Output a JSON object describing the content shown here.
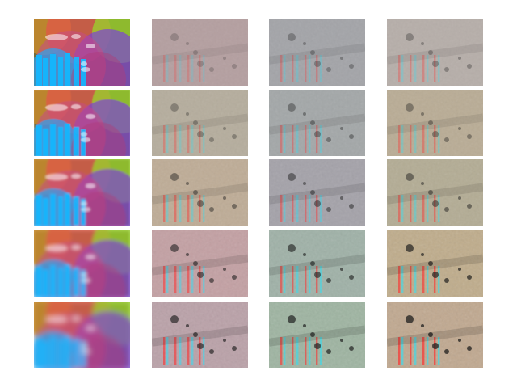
{
  "figure": {
    "rows": 5,
    "columns": 4,
    "tiles": [
      {
        "row": 1,
        "col": 1,
        "kind": "color-map",
        "blur": 0.3
      },
      {
        "row": 1,
        "col": 2,
        "kind": "gray-detail",
        "tint": "#a48a8c",
        "strength": 0.2
      },
      {
        "row": 1,
        "col": 3,
        "kind": "gray-detail",
        "tint": "#8f9195",
        "strength": 0.35
      },
      {
        "row": 1,
        "col": 4,
        "kind": "gray-detail",
        "tint": "#a79d96",
        "strength": 0.35
      },
      {
        "row": 2,
        "col": 1,
        "kind": "color-map",
        "blur": 0.6
      },
      {
        "row": 2,
        "col": 2,
        "kind": "gray-detail",
        "tint": "#a59c88",
        "strength": 0.35
      },
      {
        "row": 2,
        "col": 3,
        "kind": "gray-detail",
        "tint": "#8f9495",
        "strength": 0.45
      },
      {
        "row": 2,
        "col": 4,
        "kind": "gray-detail",
        "tint": "#aa9a7e",
        "strength": 0.45
      },
      {
        "row": 3,
        "col": 1,
        "kind": "color-map",
        "blur": 1.2
      },
      {
        "row": 3,
        "col": 2,
        "kind": "gray-detail",
        "tint": "#b09a7f",
        "strength": 0.55
      },
      {
        "row": 3,
        "col": 3,
        "kind": "gray-detail",
        "tint": "#918e96",
        "strength": 0.6
      },
      {
        "row": 3,
        "col": 4,
        "kind": "gray-detail",
        "tint": "#a39a7d",
        "strength": 0.6
      },
      {
        "row": 4,
        "col": 1,
        "kind": "color-map",
        "blur": 2.2
      },
      {
        "row": 4,
        "col": 2,
        "kind": "gray-detail",
        "tint": "#b68c8f",
        "strength": 0.75
      },
      {
        "row": 4,
        "col": 3,
        "kind": "gray-detail",
        "tint": "#8aa094",
        "strength": 0.8
      },
      {
        "row": 4,
        "col": 4,
        "kind": "gray-detail",
        "tint": "#b19a72",
        "strength": 0.9
      },
      {
        "row": 5,
        "col": 1,
        "kind": "color-map",
        "blur": 3.4
      },
      {
        "row": 5,
        "col": 2,
        "kind": "gray-detail",
        "tint": "#ab8d95",
        "strength": 0.85
      },
      {
        "row": 5,
        "col": 3,
        "kind": "gray-detail",
        "tint": "#89a48d",
        "strength": 0.9
      },
      {
        "row": 5,
        "col": 4,
        "kind": "gray-detail",
        "tint": "#b39577",
        "strength": 1.0
      }
    ]
  }
}
